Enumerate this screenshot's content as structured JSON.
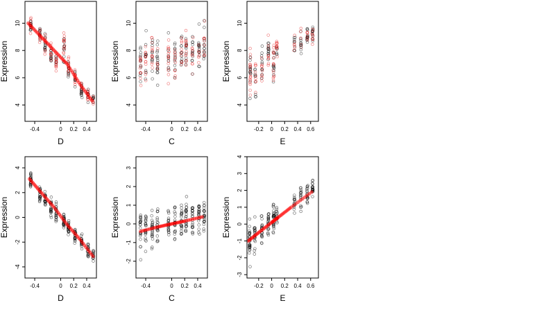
{
  "figure": {
    "colors": {
      "points_black": "#000000",
      "points_red": "#e61e1e",
      "trend": "#ff0000"
    }
  },
  "chart_data": [
    {
      "panel": "top-left",
      "type": "scatter",
      "xlabel": "D",
      "ylabel": "Expression",
      "xlim": [
        -0.55,
        0.55
      ],
      "ylim": [
        2.8,
        11.6
      ],
      "xticks": [
        -0.4,
        0.0,
        0.2,
        0.4
      ],
      "yticks": [
        4,
        6,
        8,
        10
      ],
      "trend": [
        [
          -0.5,
          10.0
        ],
        [
          -0.3,
          9.0
        ],
        [
          -0.1,
          8.0
        ],
        [
          0.1,
          7.0
        ],
        [
          0.3,
          5.5
        ],
        [
          0.5,
          4.2
        ]
      ],
      "columns": [
        {
          "x": -0.46,
          "center": 9.8,
          "spread": 1.0,
          "n": 22
        },
        {
          "x": -0.32,
          "center": 9.2,
          "spread": 1.2,
          "n": 22
        },
        {
          "x": -0.24,
          "center": 8.5,
          "spread": 1.2,
          "n": 22
        },
        {
          "x": -0.15,
          "center": 7.8,
          "spread": 1.4,
          "n": 22
        },
        {
          "x": -0.07,
          "center": 7.2,
          "spread": 1.3,
          "n": 20
        },
        {
          "x": 0.05,
          "center": 8.0,
          "spread": 2.0,
          "n": 24
        },
        {
          "x": 0.12,
          "center": 6.8,
          "spread": 1.5,
          "n": 22
        },
        {
          "x": 0.22,
          "center": 6.0,
          "spread": 1.2,
          "n": 20
        },
        {
          "x": 0.32,
          "center": 5.2,
          "spread": 1.0,
          "n": 20
        },
        {
          "x": 0.42,
          "center": 4.6,
          "spread": 0.9,
          "n": 18
        },
        {
          "x": 0.5,
          "center": 4.4,
          "spread": 0.8,
          "n": 14
        }
      ],
      "red_marker": true
    },
    {
      "panel": "top-middle",
      "type": "scatter",
      "xlabel": "C",
      "ylabel": "Expression",
      "xlim": [
        -0.55,
        0.55
      ],
      "ylim": [
        2.8,
        11.6
      ],
      "xticks": [
        -0.4,
        0.0,
        0.2,
        0.4
      ],
      "yticks": [
        4,
        6,
        8,
        10
      ],
      "trend": [],
      "columns": [
        {
          "x": -0.48,
          "center": 7.0,
          "spread": 3.0,
          "n": 24
        },
        {
          "x": -0.4,
          "center": 7.2,
          "spread": 3.0,
          "n": 22
        },
        {
          "x": -0.3,
          "center": 7.5,
          "spread": 3.0,
          "n": 24
        },
        {
          "x": -0.22,
          "center": 7.0,
          "spread": 3.2,
          "n": 22
        },
        {
          "x": -0.05,
          "center": 7.5,
          "spread": 2.8,
          "n": 22
        },
        {
          "x": 0.05,
          "center": 7.2,
          "spread": 2.8,
          "n": 22
        },
        {
          "x": 0.15,
          "center": 7.8,
          "spread": 2.6,
          "n": 22
        },
        {
          "x": 0.22,
          "center": 8.0,
          "spread": 2.6,
          "n": 24
        },
        {
          "x": 0.32,
          "center": 7.8,
          "spread": 2.8,
          "n": 22
        },
        {
          "x": 0.42,
          "center": 8.2,
          "spread": 2.6,
          "n": 22
        },
        {
          "x": 0.5,
          "center": 8.5,
          "spread": 2.6,
          "n": 22
        }
      ],
      "red_marker": true
    },
    {
      "panel": "top-right",
      "type": "scatter",
      "xlabel": "E",
      "ylabel": "Expression",
      "xlim": [
        -0.38,
        0.72
      ],
      "ylim": [
        2.8,
        11.6
      ],
      "xticks": [
        -0.2,
        0.0,
        0.2,
        0.4,
        0.6
      ],
      "yticks": [
        4,
        6,
        8,
        10
      ],
      "trend": [],
      "columns": [
        {
          "x": -0.33,
          "center": 6.5,
          "spread": 3.4,
          "n": 30
        },
        {
          "x": -0.25,
          "center": 6.0,
          "spread": 2.5,
          "n": 18
        },
        {
          "x": -0.15,
          "center": 7.0,
          "spread": 2.5,
          "n": 20
        },
        {
          "x": -0.05,
          "center": 7.8,
          "spread": 2.0,
          "n": 22
        },
        {
          "x": 0.03,
          "center": 7.0,
          "spread": 2.2,
          "n": 26
        },
        {
          "x": 0.08,
          "center": 8.0,
          "spread": 1.5,
          "n": 16
        },
        {
          "x": 0.35,
          "center": 8.5,
          "spread": 1.4,
          "n": 14
        },
        {
          "x": 0.45,
          "center": 8.8,
          "spread": 1.4,
          "n": 16
        },
        {
          "x": 0.55,
          "center": 9.0,
          "spread": 1.3,
          "n": 18
        },
        {
          "x": 0.63,
          "center": 9.3,
          "spread": 1.3,
          "n": 20
        }
      ],
      "red_marker": true
    },
    {
      "panel": "bottom-left",
      "type": "scatter",
      "xlabel": "D",
      "ylabel": "Expression",
      "xlim": [
        -0.55,
        0.55
      ],
      "ylim": [
        -4.9,
        4.9
      ],
      "xticks": [
        -0.4,
        0.0,
        0.2,
        0.4
      ],
      "yticks": [
        -4,
        -2,
        0,
        2,
        4
      ],
      "trend": [
        [
          -0.48,
          3.1
        ],
        [
          -0.3,
          2.0
        ],
        [
          -0.1,
          0.8
        ],
        [
          0.1,
          -0.6
        ],
        [
          0.3,
          -1.8
        ],
        [
          0.52,
          -3.3
        ]
      ],
      "columns": [
        {
          "x": -0.46,
          "center": 3.0,
          "spread": 1.0,
          "n": 24
        },
        {
          "x": -0.32,
          "center": 2.0,
          "spread": 1.2,
          "n": 22
        },
        {
          "x": -0.24,
          "center": 1.5,
          "spread": 1.2,
          "n": 22
        },
        {
          "x": -0.15,
          "center": 0.8,
          "spread": 1.2,
          "n": 22
        },
        {
          "x": -0.07,
          "center": 0.3,
          "spread": 1.2,
          "n": 22
        },
        {
          "x": 0.05,
          "center": -0.3,
          "spread": 1.2,
          "n": 24
        },
        {
          "x": 0.12,
          "center": -0.8,
          "spread": 1.2,
          "n": 22
        },
        {
          "x": 0.22,
          "center": -1.5,
          "spread": 1.1,
          "n": 22
        },
        {
          "x": 0.32,
          "center": -2.0,
          "spread": 1.0,
          "n": 20
        },
        {
          "x": 0.42,
          "center": -2.6,
          "spread": 1.0,
          "n": 18
        },
        {
          "x": 0.5,
          "center": -3.1,
          "spread": 0.8,
          "n": 14
        }
      ],
      "red_marker": false
    },
    {
      "panel": "bottom-middle",
      "type": "scatter",
      "xlabel": "C",
      "ylabel": "Expression",
      "xlim": [
        -0.55,
        0.55
      ],
      "ylim": [
        -2.9,
        3.6
      ],
      "xticks": [
        -0.4,
        0.0,
        0.2,
        0.4
      ],
      "yticks": [
        -2,
        -1,
        0,
        1,
        2,
        3
      ],
      "trend": [
        [
          -0.48,
          -0.4
        ],
        [
          -0.2,
          -0.15
        ],
        [
          0.0,
          0.0
        ],
        [
          0.2,
          0.15
        ],
        [
          0.5,
          0.4
        ]
      ],
      "columns": [
        {
          "x": -0.48,
          "center": -0.3,
          "spread": 1.8,
          "n": 22
        },
        {
          "x": -0.4,
          "center": -0.2,
          "spread": 1.6,
          "n": 22
        },
        {
          "x": -0.3,
          "center": -0.1,
          "spread": 1.6,
          "n": 24
        },
        {
          "x": -0.22,
          "center": -0.1,
          "spread": 1.6,
          "n": 22
        },
        {
          "x": -0.05,
          "center": 0.0,
          "spread": 1.5,
          "n": 22
        },
        {
          "x": 0.05,
          "center": 0.1,
          "spread": 1.5,
          "n": 22
        },
        {
          "x": 0.15,
          "center": 0.1,
          "spread": 1.5,
          "n": 22
        },
        {
          "x": 0.22,
          "center": 0.2,
          "spread": 1.7,
          "n": 24
        },
        {
          "x": 0.32,
          "center": 0.3,
          "spread": 1.5,
          "n": 22
        },
        {
          "x": 0.42,
          "center": 0.3,
          "spread": 1.5,
          "n": 22
        },
        {
          "x": 0.5,
          "center": 0.4,
          "spread": 1.5,
          "n": 22
        }
      ],
      "red_marker": false
    },
    {
      "panel": "bottom-right",
      "type": "scatter",
      "xlabel": "E",
      "ylabel": "Expression",
      "xlim": [
        -0.38,
        0.72
      ],
      "ylim": [
        -3.2,
        4.0
      ],
      "xticks": [
        -0.2,
        0.0,
        0.2,
        0.4,
        0.6
      ],
      "yticks": [
        -3,
        -2,
        -1,
        0,
        1,
        2,
        3,
        4
      ],
      "trend": [
        [
          -0.36,
          -1.0
        ],
        [
          -0.2,
          -0.5
        ],
        [
          0.0,
          0.1
        ],
        [
          0.1,
          0.4
        ],
        [
          0.3,
          1.0
        ],
        [
          0.65,
          2.0
        ]
      ],
      "columns": [
        {
          "x": -0.34,
          "center": -1.0,
          "spread": 1.8,
          "n": 30
        },
        {
          "x": -0.26,
          "center": -0.6,
          "spread": 1.6,
          "n": 22
        },
        {
          "x": -0.15,
          "center": -0.3,
          "spread": 1.4,
          "n": 20
        },
        {
          "x": -0.05,
          "center": 0.0,
          "spread": 1.4,
          "n": 22
        },
        {
          "x": 0.03,
          "center": 0.3,
          "spread": 1.5,
          "n": 26
        },
        {
          "x": 0.08,
          "center": 0.4,
          "spread": 1.3,
          "n": 16
        },
        {
          "x": 0.35,
          "center": 1.3,
          "spread": 1.2,
          "n": 14
        },
        {
          "x": 0.45,
          "center": 1.6,
          "spread": 1.2,
          "n": 16
        },
        {
          "x": 0.55,
          "center": 1.8,
          "spread": 1.1,
          "n": 18
        },
        {
          "x": 0.63,
          "center": 2.0,
          "spread": 1.1,
          "n": 20
        }
      ],
      "red_marker": false
    }
  ]
}
